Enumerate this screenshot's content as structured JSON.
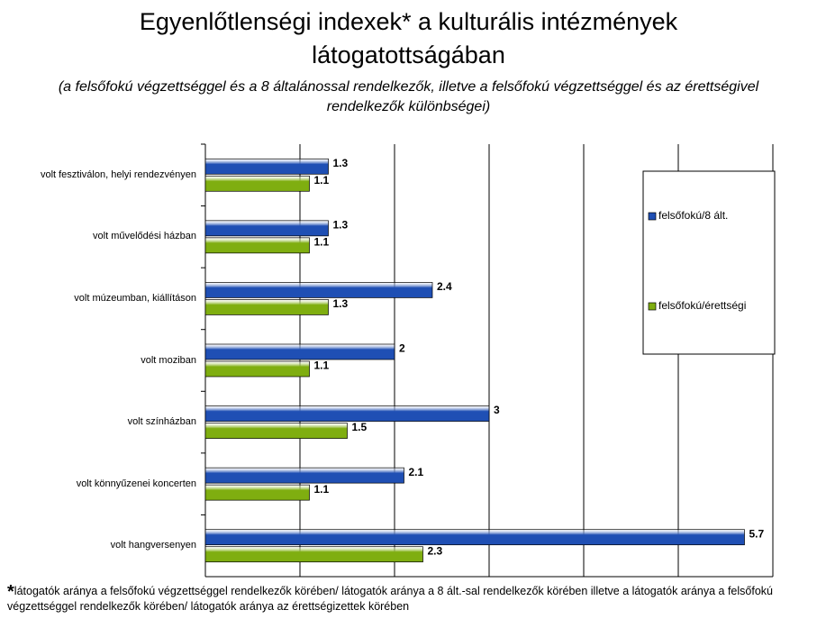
{
  "chart_data": {
    "type": "barh",
    "title": "Egyenlőtlenségi indexek* a kulturális intézmények látogatottságában",
    "subtitle": "(a felsőfokú végzettséggel és a 8 általánossal rendelkezők, illetve a felsőfokú végzettséggel és az érettségivel rendelkezők különbségei)",
    "categories": [
      "volt fesztiválon, helyi rendezvényen",
      "volt művelődési házban",
      "volt múzeumban, kiállításon",
      "volt moziban",
      "volt színházban",
      "volt könnyűzenei koncerten",
      "volt hangversenyen"
    ],
    "series": [
      {
        "name": "felsőfokú/8 ált.",
        "color": "#1f4fb4",
        "values": [
          1.3,
          1.3,
          2.4,
          2,
          3,
          2.1,
          5.7
        ]
      },
      {
        "name": "felsőfokú/érettségi",
        "color": "#7fae10",
        "values": [
          1.1,
          1.1,
          1.3,
          1.1,
          1.5,
          1.1,
          2.3
        ]
      }
    ],
    "xlim": [
      0,
      6
    ],
    "xticks": [
      0,
      1,
      2,
      3,
      4,
      5,
      6
    ],
    "grid": true,
    "legend": "right",
    "footnote_marker": "*",
    "footnote": "látogatók aránya a felsőfokú végzettséggel rendelkezők körében/ látogatók aránya a 8 ált.-sal rendelkezők körében illetve a látogatók aránya a felsőfokú végzettséggel rendelkezők körében/ látogatók aránya az érettségizettek körében"
  }
}
